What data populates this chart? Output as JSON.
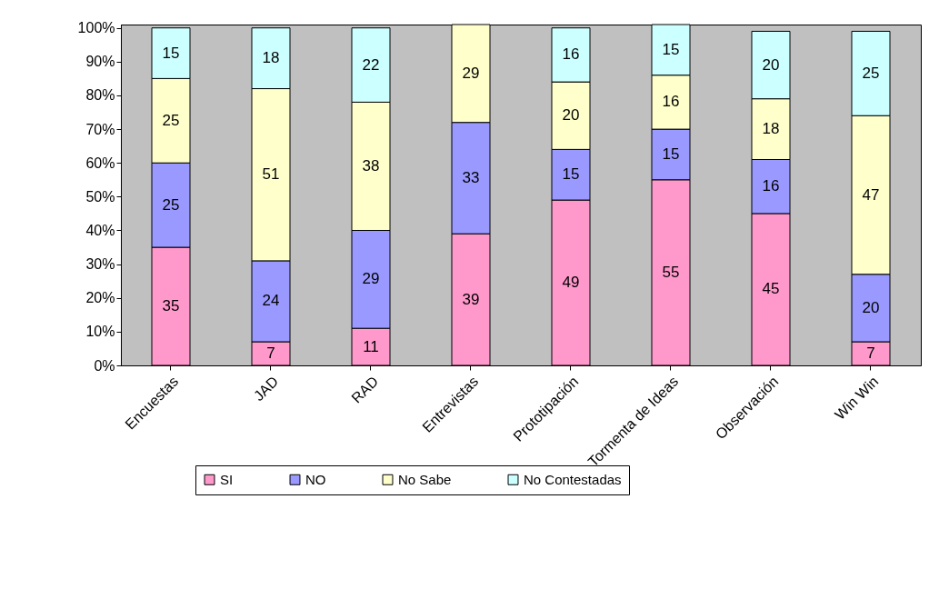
{
  "chart_data": {
    "type": "bar",
    "stacked": true,
    "data_labels": true,
    "legend": "bottom",
    "grid": false,
    "categories": [
      "Encuestas",
      "JAD",
      "RAD",
      "Entrevistas",
      "Prototipación",
      "Tormenta de Ideas",
      "Observación",
      "Win Win"
    ],
    "ylim": [
      0,
      101
    ],
    "yticks": [
      {
        "value": 0,
        "label": "0%"
      },
      {
        "value": 10,
        "label": "10%"
      },
      {
        "value": 20,
        "label": "20%"
      },
      {
        "value": 30,
        "label": "30%"
      },
      {
        "value": 40,
        "label": "40%"
      },
      {
        "value": 50,
        "label": "50%"
      },
      {
        "value": 60,
        "label": "60%"
      },
      {
        "value": 70,
        "label": "70%"
      },
      {
        "value": 80,
        "label": "80%"
      },
      {
        "value": 90,
        "label": "90%"
      },
      {
        "value": 100,
        "label": "100%"
      }
    ],
    "series": [
      {
        "name": "SI",
        "color": "#ff99cc",
        "values": [
          35,
          7,
          11,
          39,
          49,
          55,
          45,
          7
        ]
      },
      {
        "name": "NO",
        "color": "#9999ff",
        "values": [
          25,
          24,
          29,
          33,
          15,
          15,
          16,
          20
        ]
      },
      {
        "name": "No Sabe",
        "color": "#ffffcc",
        "values": [
          25,
          51,
          38,
          29,
          20,
          16,
          18,
          47
        ]
      },
      {
        "name": "No Contestadas",
        "color": "#ccffff",
        "values": [
          15,
          18,
          22,
          null,
          16,
          15,
          20,
          25
        ]
      }
    ]
  }
}
